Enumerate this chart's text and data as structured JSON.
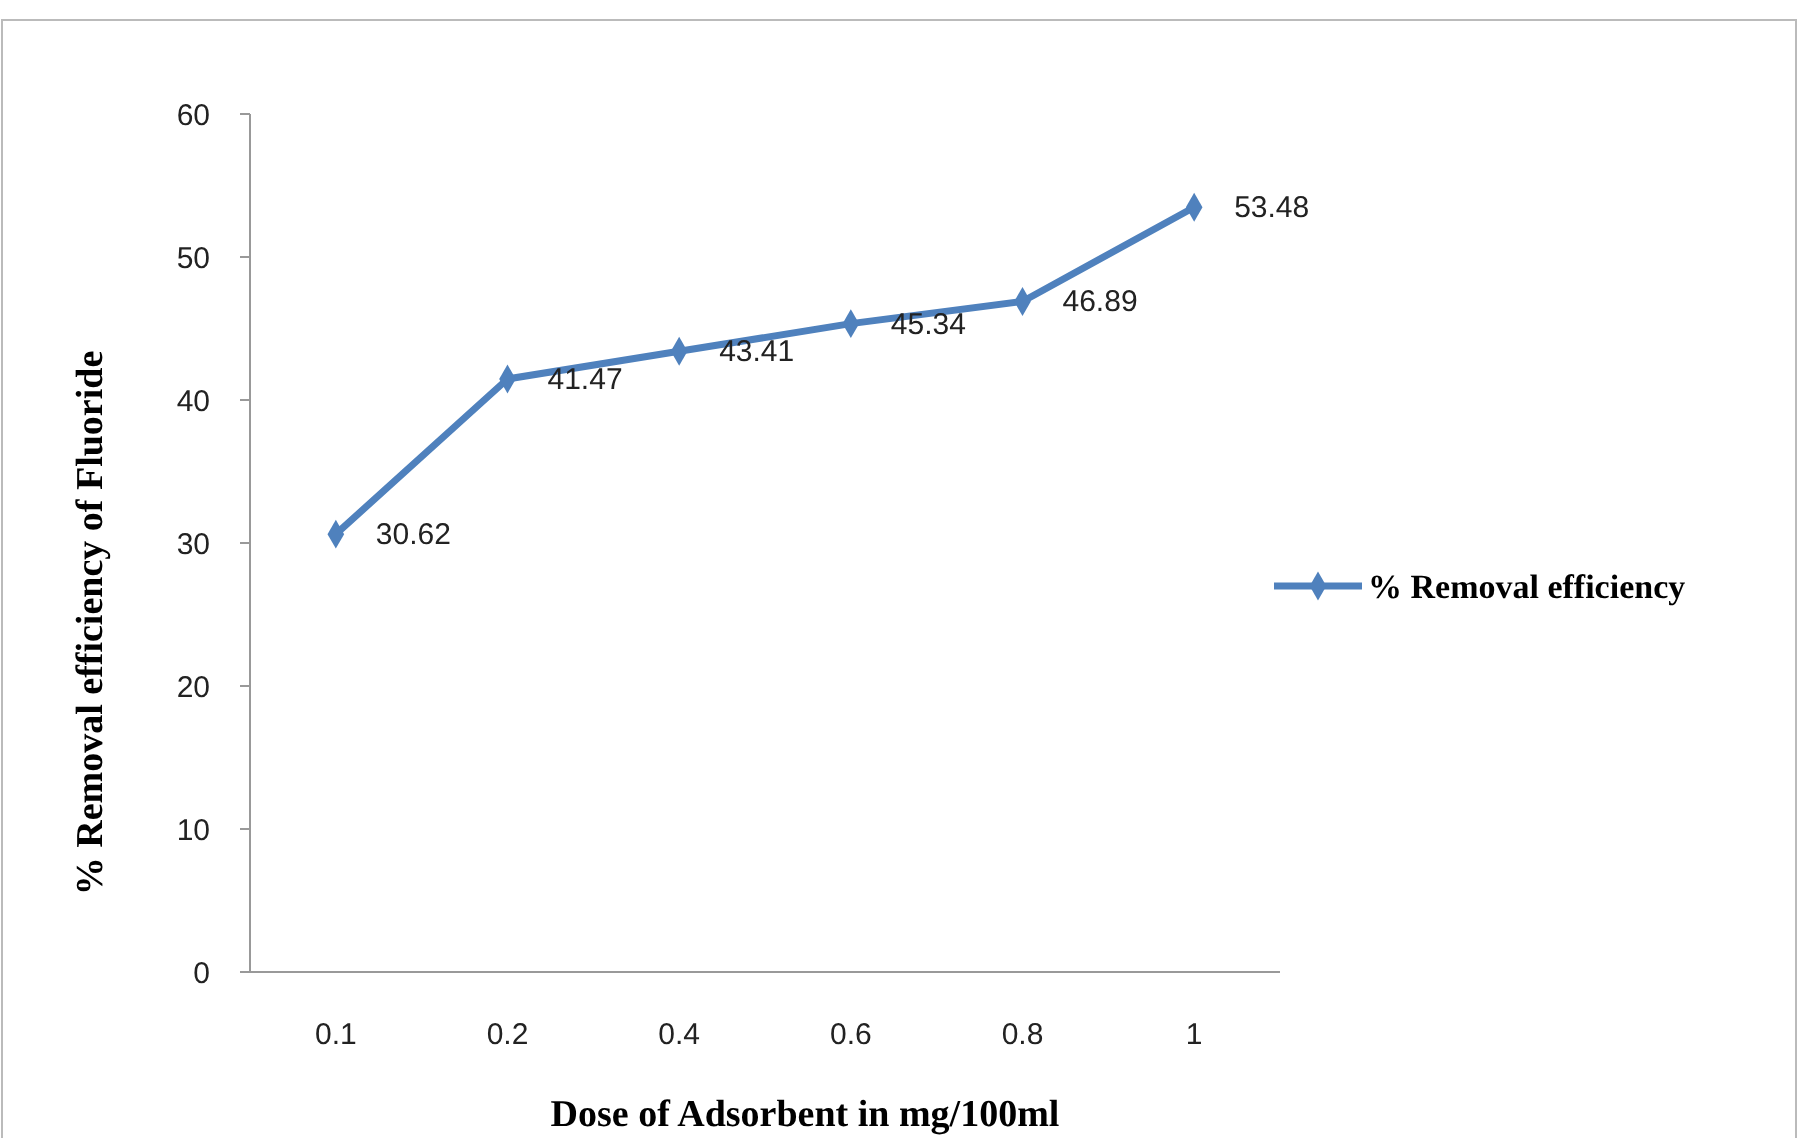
{
  "chart_data": {
    "type": "line",
    "xlabel": "Dose of Adsorbent in mg/100ml",
    "ylabel": "% Removal efficiency of Fluoride",
    "categories": [
      "0.1",
      "0.2",
      "0.4",
      "0.6",
      "0.8",
      "1"
    ],
    "series": [
      {
        "name": "% Removal efficiency",
        "color": "#4f81bd",
        "values": [
          30.62,
          41.47,
          43.41,
          45.34,
          46.89,
          53.48
        ]
      }
    ],
    "ylim": [
      0,
      60
    ],
    "yticks": [
      0,
      10,
      20,
      30,
      40,
      50,
      60
    ],
    "grid": false,
    "legend": "right",
    "marker": "diamond",
    "data_labels": true
  }
}
